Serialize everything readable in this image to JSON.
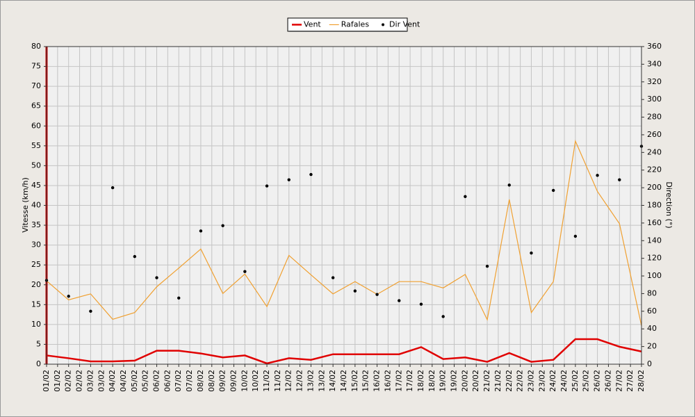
{
  "chart_data": {
    "type": "line",
    "y_label": "Vitesse (km/h)",
    "y2_label": "Direction (°)",
    "x": [
      1,
      2,
      3,
      4,
      5,
      6,
      7,
      8,
      9,
      10,
      11,
      12,
      13,
      14,
      15,
      16,
      17,
      18,
      19,
      20,
      21,
      22,
      23,
      24,
      25,
      26,
      27,
      28
    ],
    "xlim": [
      1,
      28
    ],
    "xticks": [
      {
        "value": 1,
        "label": "01/02"
      },
      {
        "value": 1.5,
        "label": "01/02"
      },
      {
        "value": 2,
        "label": "02/02"
      },
      {
        "value": 2.5,
        "label": "02/02"
      },
      {
        "value": 3,
        "label": "03/02"
      },
      {
        "value": 3.5,
        "label": "03/02"
      },
      {
        "value": 4,
        "label": "04/02"
      },
      {
        "value": 4.5,
        "label": "04/02"
      },
      {
        "value": 5,
        "label": "05/02"
      },
      {
        "value": 5.5,
        "label": "05/02"
      },
      {
        "value": 6,
        "label": "06/02"
      },
      {
        "value": 6.5,
        "label": "06/02"
      },
      {
        "value": 7,
        "label": "07/02"
      },
      {
        "value": 7.5,
        "label": "07/02"
      },
      {
        "value": 8,
        "label": "08/02"
      },
      {
        "value": 8.5,
        "label": "08/02"
      },
      {
        "value": 9,
        "label": "09/02"
      },
      {
        "value": 9.5,
        "label": "09/02"
      },
      {
        "value": 10,
        "label": "10/02"
      },
      {
        "value": 10.5,
        "label": "10/02"
      },
      {
        "value": 11,
        "label": "11/02"
      },
      {
        "value": 11.5,
        "label": "11/02"
      },
      {
        "value": 12,
        "label": "12/02"
      },
      {
        "value": 12.5,
        "label": "12/02"
      },
      {
        "value": 13,
        "label": "13/02"
      },
      {
        "value": 13.5,
        "label": "13/02"
      },
      {
        "value": 14,
        "label": "14/02"
      },
      {
        "value": 14.5,
        "label": "14/02"
      },
      {
        "value": 15,
        "label": "15/02"
      },
      {
        "value": 15.5,
        "label": "15/02"
      },
      {
        "value": 16,
        "label": "16/02"
      },
      {
        "value": 16.5,
        "label": "16/02"
      },
      {
        "value": 17,
        "label": "17/02"
      },
      {
        "value": 17.5,
        "label": "17/02"
      },
      {
        "value": 18,
        "label": "18/02"
      },
      {
        "value": 18.5,
        "label": "18/02"
      },
      {
        "value": 19,
        "label": "19/02"
      },
      {
        "value": 19.5,
        "label": "19/02"
      },
      {
        "value": 20,
        "label": "20/02"
      },
      {
        "value": 20.5,
        "label": "20/02"
      },
      {
        "value": 21,
        "label": "21/02"
      },
      {
        "value": 21.5,
        "label": "21/02"
      },
      {
        "value": 22,
        "label": "22/02"
      },
      {
        "value": 22.5,
        "label": "22/02"
      },
      {
        "value": 23,
        "label": "23/02"
      },
      {
        "value": 23.5,
        "label": "23/02"
      },
      {
        "value": 24,
        "label": "24/02"
      },
      {
        "value": 24.5,
        "label": "24/02"
      },
      {
        "value": 25,
        "label": "25/02"
      },
      {
        "value": 25.5,
        "label": "25/02"
      },
      {
        "value": 26,
        "label": "26/02"
      },
      {
        "value": 26.5,
        "label": "26/02"
      },
      {
        "value": 27,
        "label": "27/02"
      },
      {
        "value": 27.5,
        "label": "27/02"
      },
      {
        "value": 28,
        "label": "28/02"
      }
    ],
    "ylim": [
      0,
      80
    ],
    "yticks": [
      0,
      5,
      10,
      15,
      20,
      25,
      30,
      35,
      40,
      45,
      50,
      55,
      60,
      65,
      70,
      75,
      80
    ],
    "y2lim": [
      0,
      360
    ],
    "y2ticks": [
      0,
      20,
      40,
      60,
      80,
      100,
      120,
      140,
      160,
      180,
      200,
      220,
      240,
      260,
      280,
      300,
      320,
      340,
      360
    ],
    "grid": true,
    "legend": "top",
    "series": [
      {
        "name": "Vent",
        "color": "#e00000",
        "kind": "line",
        "values": [
          2.2,
          1.5,
          0.7,
          0.7,
          0.9,
          3.4,
          3.4,
          2.7,
          1.7,
          2.2,
          0.2,
          1.5,
          1.1,
          2.5,
          2.5,
          2.5,
          2.5,
          4.3,
          1.3,
          1.7,
          0.6,
          2.8,
          0.6,
          1.1,
          6.3,
          6.3,
          4.4,
          3.2
        ]
      },
      {
        "name": "Rafales",
        "color": "#f0a030",
        "kind": "line",
        "values": [
          21,
          16.2,
          17.7,
          11.3,
          13,
          19.5,
          24.2,
          29,
          17.8,
          22.7,
          14.5,
          27.4,
          22.5,
          17.7,
          20.8,
          17.6,
          20.8,
          20.8,
          19.2,
          22.6,
          11.2,
          41.5,
          13,
          20.8,
          56.2,
          43.5,
          35.4,
          9.7
        ]
      },
      {
        "name": "Dir Vent",
        "color": "#000000",
        "kind": "scatter",
        "axis": "y2",
        "values": [
          95,
          77,
          60,
          200,
          122,
          98,
          75,
          151,
          157,
          105,
          202,
          209,
          215,
          98,
          83,
          79,
          72,
          68,
          54,
          190,
          111,
          203,
          126,
          197,
          145,
          214,
          209,
          247
        ]
      }
    ]
  }
}
